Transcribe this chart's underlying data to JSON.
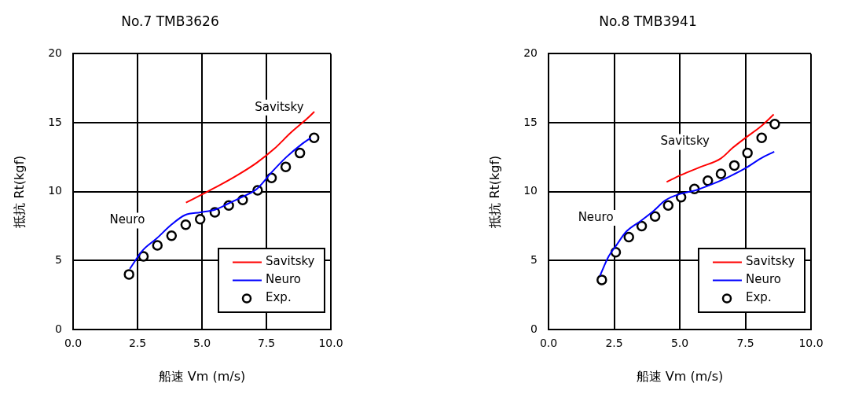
{
  "chart_data": [
    {
      "type": "line",
      "title": "No.7 TMB3626",
      "xlabel": "船速 Vm (m/s)",
      "ylabel": "抵抗 Rt(kgf)",
      "xlim": [
        0,
        10
      ],
      "xticks": [
        {
          "value": 0,
          "label": "0.0"
        },
        {
          "value": 2.5,
          "label": "2.5"
        },
        {
          "value": 5,
          "label": "5.0"
        },
        {
          "value": 7.5,
          "label": "7.5"
        },
        {
          "value": 10,
          "label": "10.0"
        }
      ],
      "ylim": [
        0,
        20
      ],
      "yticks": [
        0,
        5,
        10,
        15,
        20
      ],
      "grid": true,
      "legend": "bottom right",
      "series": [
        {
          "name": "Savitsky",
          "type": "line",
          "color": "#ff0000",
          "marker": "none",
          "x": [
            4.38,
            4.95,
            5.62,
            6.38,
            7.13,
            7.8,
            8.46,
            9.08,
            9.36
          ],
          "values": [
            9.2,
            9.75,
            10.4,
            11.2,
            12.1,
            13.1,
            14.3,
            15.3,
            15.8
          ]
        },
        {
          "name": "Neuro",
          "type": "line",
          "color": "#0000ff",
          "marker": "none",
          "x": [
            2.2,
            2.68,
            3.24,
            3.81,
            4.34,
            4.95,
            5.52,
            6.09,
            6.66,
            7.13,
            7.7,
            8.27,
            8.84,
            9.22
          ],
          "values": [
            4.4,
            5.7,
            6.6,
            7.6,
            8.3,
            8.5,
            8.7,
            9.2,
            9.7,
            10.2,
            11.4,
            12.5,
            13.4,
            13.9
          ]
        },
        {
          "name": "Exp.",
          "type": "scatter",
          "color": "#000000",
          "marker": "circle",
          "x": [
            2.17,
            2.73,
            3.27,
            3.82,
            4.37,
            4.93,
            5.5,
            6.04,
            6.58,
            7.16,
            7.7,
            8.25,
            8.8,
            9.35
          ],
          "values": [
            4.0,
            5.3,
            6.1,
            6.8,
            7.6,
            8.0,
            8.5,
            9.0,
            9.4,
            10.1,
            11.0,
            11.8,
            12.8,
            13.9
          ]
        }
      ]
    },
    {
      "type": "line",
      "title": "No.8 TMB3941",
      "xlabel": "船速 Vm (m/s)",
      "ylabel": "抵抗 Rt(kgf)",
      "xlim": [
        0,
        10
      ],
      "xticks": [
        {
          "value": 0,
          "label": "0.0"
        },
        {
          "value": 2.5,
          "label": "2.5"
        },
        {
          "value": 5,
          "label": "5.0"
        },
        {
          "value": 7.5,
          "label": "7.5"
        },
        {
          "value": 10,
          "label": "10.0"
        }
      ],
      "ylim": [
        0,
        20
      ],
      "yticks": [
        0,
        5,
        10,
        15,
        20
      ],
      "grid": true,
      "legend": "bottom right",
      "series": [
        {
          "name": "Savitsky",
          "type": "line",
          "color": "#ff0000",
          "marker": "none",
          "x": [
            4.5,
            5.04,
            5.8,
            6.56,
            7.03,
            7.5,
            8.07,
            8.58
          ],
          "values": [
            10.7,
            11.2,
            11.8,
            12.4,
            13.2,
            13.9,
            14.7,
            15.6
          ]
        },
        {
          "name": "Neuro",
          "type": "line",
          "color": "#0000ff",
          "marker": "none",
          "x": [
            1.96,
            2.29,
            2.58,
            2.96,
            3.53,
            4.0,
            4.47,
            5.04,
            5.61,
            6.18,
            6.84,
            7.5,
            8.08,
            8.6
          ],
          "values": [
            3.9,
            5.3,
            6.1,
            7.1,
            7.9,
            8.6,
            9.4,
            9.85,
            10.1,
            10.5,
            11.05,
            11.7,
            12.4,
            12.9
          ]
        },
        {
          "name": "Exp.",
          "type": "scatter",
          "color": "#000000",
          "marker": "circle",
          "x": [
            2.03,
            2.56,
            3.06,
            3.55,
            4.06,
            4.56,
            5.05,
            5.56,
            6.07,
            6.57,
            7.08,
            7.58,
            8.12,
            8.62
          ],
          "values": [
            3.6,
            5.6,
            6.7,
            7.5,
            8.2,
            9.0,
            9.6,
            10.2,
            10.8,
            11.3,
            11.9,
            12.8,
            13.9,
            14.9
          ]
        }
      ]
    }
  ]
}
